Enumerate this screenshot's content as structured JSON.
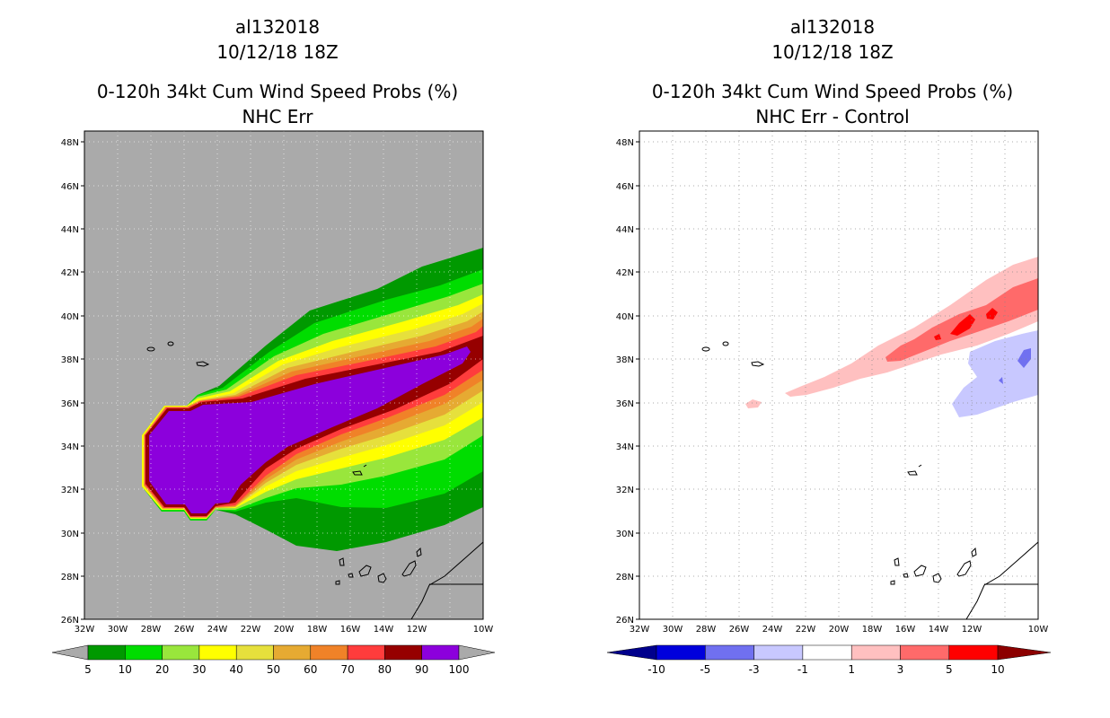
{
  "left": {
    "storm_id": "al132018",
    "datetime": "10/12/18 18Z",
    "title": "0-120h 34kt Cum Wind Speed Probs (%)",
    "subtitle": "NHC Err",
    "lat_ticks": [
      "48N",
      "46N",
      "44N",
      "42N",
      "40N",
      "38N",
      "36N",
      "34N",
      "32N",
      "30N",
      "28N",
      "26N"
    ],
    "lon_ticks": [
      "32W",
      "30W",
      "28W",
      "26W",
      "24W",
      "22W",
      "20W",
      "18W",
      "16W",
      "14W",
      "12W",
      "10W"
    ],
    "colorbar": {
      "labels": [
        "5",
        "10",
        "20",
        "30",
        "40",
        "50",
        "60",
        "70",
        "80",
        "90",
        "100"
      ],
      "colors": [
        "#009900",
        "#00dd00",
        "#99e63c",
        "#ffff00",
        "#e6e03c",
        "#e6aa32",
        "#f08228",
        "#ff3c3c",
        "#960000",
        "#8c00dc"
      ],
      "under_color": "#aaaaaa",
      "over_color": "#aaaaaa"
    },
    "background_color": "#aaaaaa"
  },
  "right": {
    "storm_id": "al132018",
    "datetime": "10/12/18 18Z",
    "title": "0-120h 34kt Cum Wind Speed Probs (%)",
    "subtitle": "NHC Err - Control",
    "lat_ticks": [
      "48N",
      "46N",
      "44N",
      "42N",
      "40N",
      "38N",
      "36N",
      "34N",
      "32N",
      "30N",
      "28N",
      "26N"
    ],
    "lon_ticks": [
      "32W",
      "30W",
      "28W",
      "26W",
      "24W",
      "22W",
      "20W",
      "18W",
      "16W",
      "14W",
      "12W",
      "10W"
    ],
    "colorbar": {
      "labels": [
        "-10",
        "-5",
        "-3",
        "-1",
        "1",
        "3",
        "5",
        "10"
      ],
      "colors": [
        "#0000dc",
        "#7070f0",
        "#c8c8ff",
        "#ffffff",
        "#ffc0c0",
        "#ff6a6a",
        "#ff0000"
      ],
      "under_color": "#00008c",
      "over_color": "#8c0000"
    },
    "background_color": "#ffffff"
  }
}
